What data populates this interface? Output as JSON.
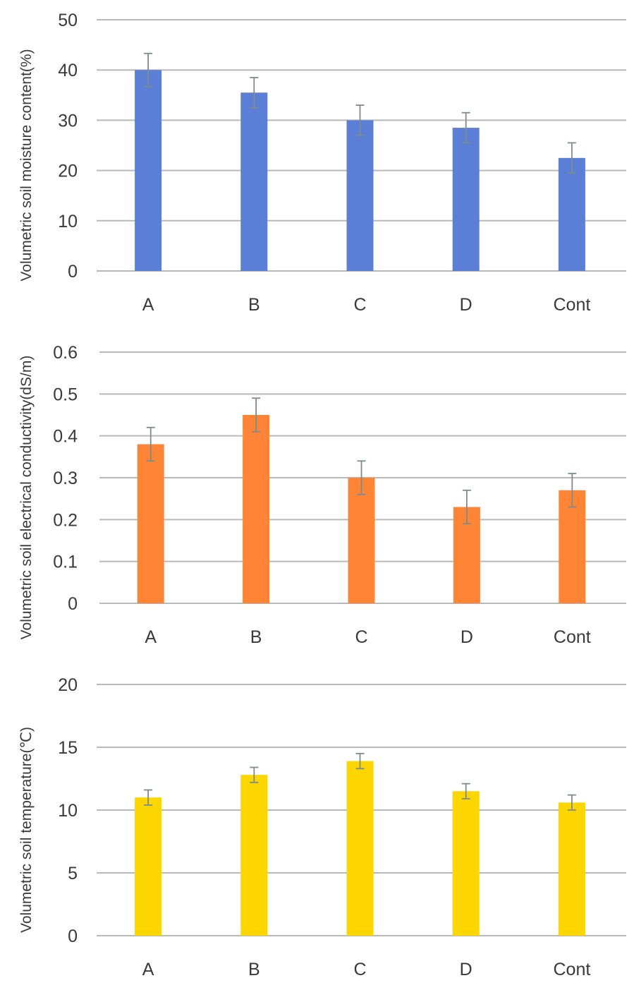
{
  "chart_data": [
    {
      "type": "bar",
      "categories": [
        "A",
        "B",
        "C",
        "D",
        "Cont"
      ],
      "values": [
        40,
        35.5,
        30,
        28.5,
        22.5
      ],
      "error": [
        3.3,
        3,
        3,
        3,
        3
      ],
      "ylabel": "Volumetric soil moisture content(%)",
      "ylim": [
        0,
        50
      ],
      "yticks": [
        "0",
        "10",
        "20",
        "30",
        "40",
        "50"
      ],
      "bar_color": "#5b7fd6",
      "grid": true,
      "legend": "none"
    },
    {
      "type": "bar",
      "categories": [
        "A",
        "B",
        "C",
        "D",
        "Cont"
      ],
      "values": [
        0.38,
        0.45,
        0.3,
        0.23,
        0.27
      ],
      "error": [
        0.04,
        0.04,
        0.04,
        0.04,
        0.04
      ],
      "ylabel": "Volumetric soil electrical conductivity(dS/m)",
      "ylim": [
        0,
        0.6
      ],
      "yticks": [
        "0",
        "0.1",
        "0.2",
        "0.3",
        "0.4",
        "0.5",
        "0.6"
      ],
      "bar_color": "#fd8535",
      "grid": true,
      "legend": "none"
    },
    {
      "type": "bar",
      "categories": [
        "A",
        "B",
        "C",
        "D",
        "Cont"
      ],
      "values": [
        11,
        12.8,
        13.9,
        11.5,
        10.6
      ],
      "error": [
        0.6,
        0.6,
        0.6,
        0.6,
        0.6
      ],
      "ylabel": "Volumetric soil temperature(℃)",
      "ylim": [
        0,
        20
      ],
      "yticks": [
        "0",
        "5",
        "10",
        "15",
        "20"
      ],
      "bar_color": "#fdd600",
      "grid": true,
      "legend": "none"
    }
  ]
}
